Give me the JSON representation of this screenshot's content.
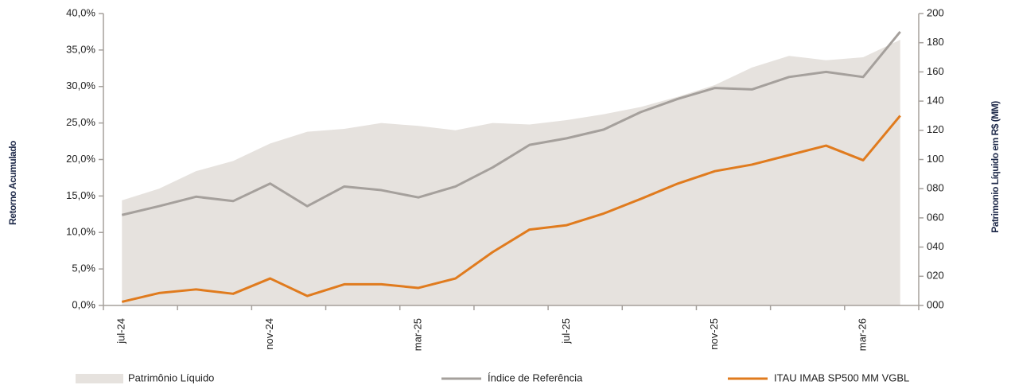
{
  "chart_data": {
    "type": "line",
    "categories": [
      "jul-24",
      null,
      null,
      null,
      "nov-24",
      null,
      null,
      null,
      "mar-25",
      null,
      null,
      null,
      "jul-25",
      null,
      null,
      null,
      "nov-25",
      null,
      null,
      null,
      "mar-26",
      null
    ],
    "series": [
      {
        "name": "Patrimônio Líquido",
        "kind": "area",
        "axis": "y2",
        "color": "#e6e2de",
        "values": [
          72,
          80,
          92,
          99,
          111,
          119,
          121,
          125,
          123,
          120,
          125,
          124,
          127,
          131,
          136,
          143,
          151,
          163,
          171,
          168,
          170,
          182
        ]
      },
      {
        "name": "Índice de Referência",
        "color": "#a5a09c",
        "values": [
          12.4,
          13.6,
          14.9,
          14.3,
          16.7,
          13.6,
          16.3,
          15.8,
          14.8,
          16.3,
          18.9,
          22.0,
          22.9,
          24.1,
          26.5,
          28.3,
          29.8,
          29.6,
          31.3,
          32.0,
          31.3,
          37.5
        ]
      },
      {
        "name": "ITAU IMAB SP500 MM VGBL",
        "color": "#e07b1e",
        "values": [
          0.5,
          1.7,
          2.2,
          1.6,
          3.7,
          1.3,
          2.9,
          2.9,
          2.4,
          3.7,
          7.3,
          10.4,
          11.0,
          12.6,
          14.6,
          16.7,
          18.4,
          19.3,
          20.6,
          21.9,
          19.9,
          26.0
        ]
      }
    ],
    "ylabel": "Retorno Acumulado",
    "y2label": "Patrimonio Líquido em R$ (MM)",
    "ylim": [
      0,
      40
    ],
    "yticks": [
      {
        "value": 0,
        "label": "0,0%"
      },
      {
        "value": 5,
        "label": "5,0%"
      },
      {
        "value": 10,
        "label": "10,0%"
      },
      {
        "value": 15,
        "label": "15,0%"
      },
      {
        "value": 20,
        "label": "20,0%"
      },
      {
        "value": 25,
        "label": "25,0%"
      },
      {
        "value": 30,
        "label": "30,0%"
      },
      {
        "value": 35,
        "label": "35,0%"
      },
      {
        "value": 40,
        "label": "40,0%"
      }
    ],
    "y2lim": [
      0,
      200
    ],
    "y2ticks": [
      {
        "value": 0,
        "label": "000"
      },
      {
        "value": 20,
        "label": "020"
      },
      {
        "value": 40,
        "label": "040"
      },
      {
        "value": 60,
        "label": "060"
      },
      {
        "value": 80,
        "label": "080"
      },
      {
        "value": 100,
        "label": "100"
      },
      {
        "value": 120,
        "label": "120"
      },
      {
        "value": 140,
        "label": "140"
      },
      {
        "value": 160,
        "label": "160"
      },
      {
        "value": 180,
        "label": "180"
      },
      {
        "value": 200,
        "label": "200"
      }
    ],
    "grid": false,
    "legend": "bottom"
  }
}
